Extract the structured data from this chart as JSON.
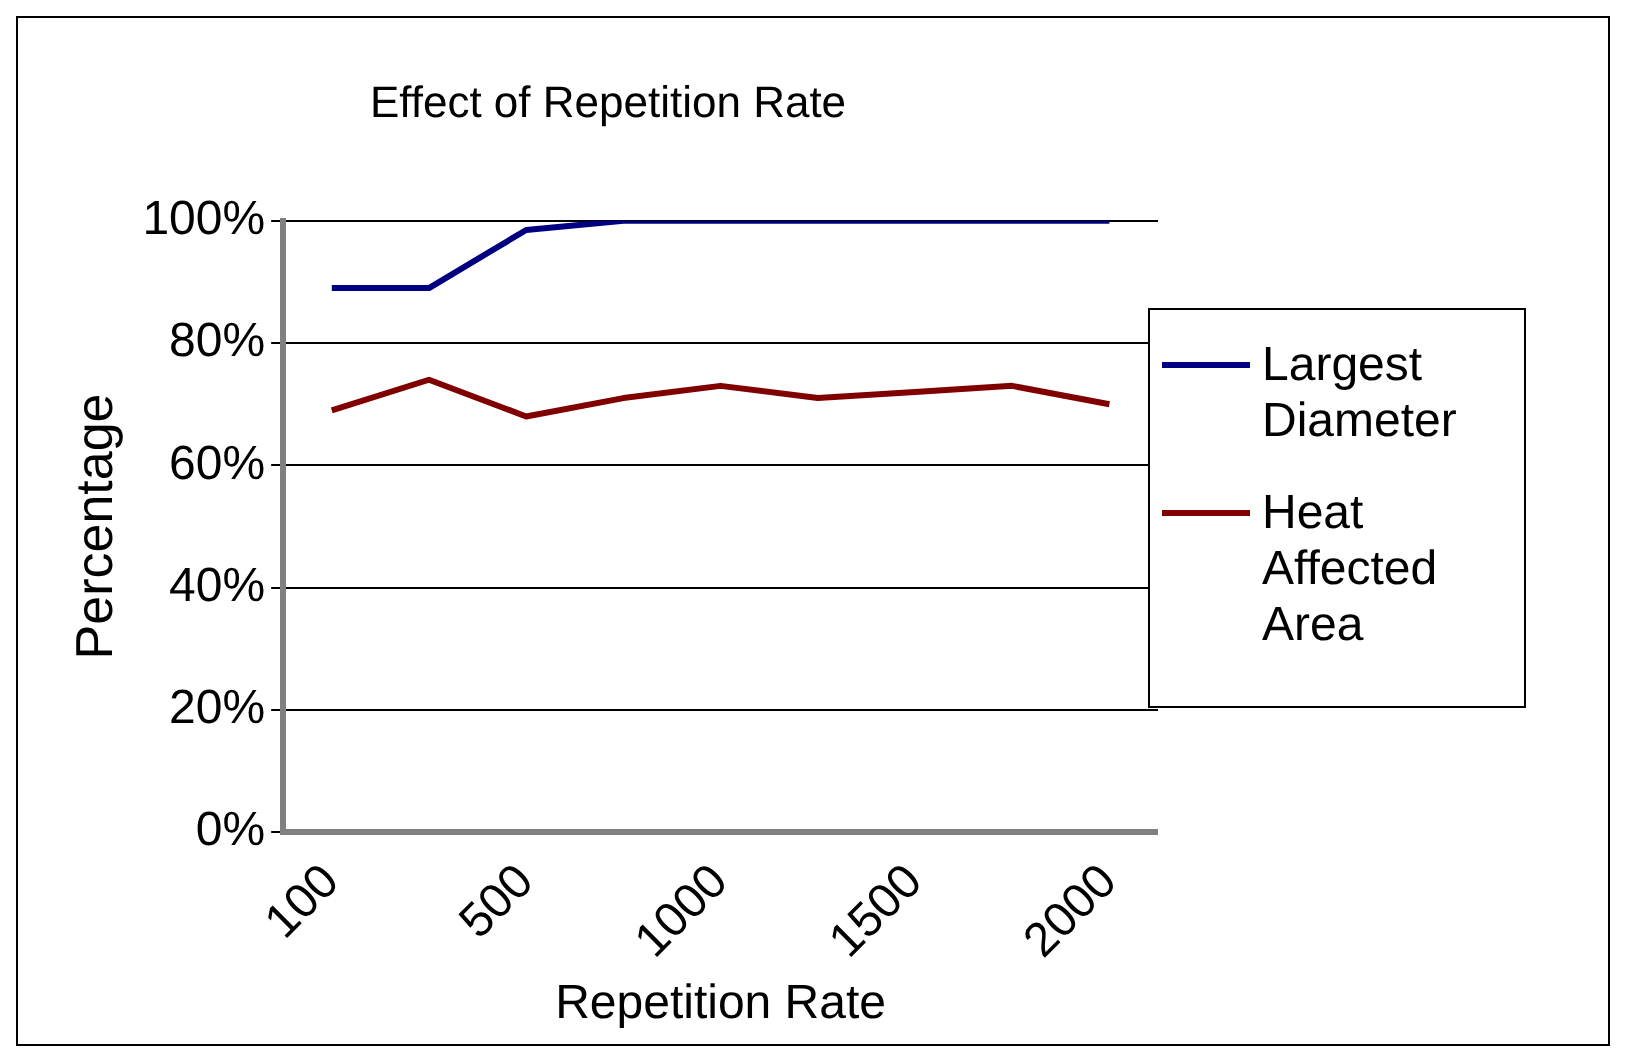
{
  "chart_data": {
    "type": "line",
    "title": "Effect of Repetition Rate",
    "xlabel": "Repetition Rate",
    "ylabel": "Percentage",
    "categories": [
      "100",
      null,
      "500",
      null,
      "1000",
      null,
      "1500",
      null,
      "2000"
    ],
    "series": [
      {
        "name": "Largest Diameter",
        "color": "#000080",
        "values": [
          89,
          89,
          98.5,
          100,
          100,
          100,
          100,
          100,
          100
        ]
      },
      {
        "name": "Heat Affected Area",
        "color": "#800000",
        "values": [
          69,
          74,
          68,
          71,
          73,
          71,
          72,
          73,
          70
        ]
      }
    ],
    "ylim": [
      0,
      100
    ],
    "yticks": [
      {
        "value": 0,
        "label": "0%"
      },
      {
        "value": 20,
        "label": "20%"
      },
      {
        "value": 40,
        "label": "40%"
      },
      {
        "value": 60,
        "label": "60%"
      },
      {
        "value": 80,
        "label": "80%"
      },
      {
        "value": 100,
        "label": "100%"
      }
    ],
    "grid": "y",
    "legend": "right",
    "marker": "none",
    "line_style": "solid"
  }
}
